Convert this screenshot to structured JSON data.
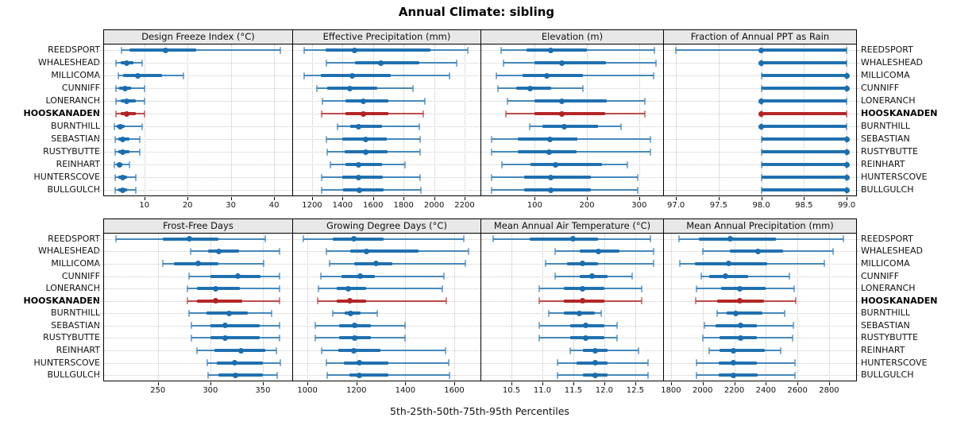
{
  "chart_data": {
    "type": "dotplot-percentiles",
    "title": "Annual Climate: sibling",
    "caption": "5th-25th-50th-75th-95th Percentiles",
    "percentiles": [
      5,
      25,
      50,
      75,
      95
    ],
    "sites": [
      "REEDSPORT",
      "WHALESHEAD",
      "MILLICOMA",
      "CUNNIFF",
      "LONERANCH",
      "HOOSKANADEN",
      "BURNTHILL",
      "SEBASTIAN",
      "RUSTYBUTTE",
      "REINHART",
      "HUNTERSCOVE",
      "BULLGULCH"
    ],
    "highlight_site": "HOOSKANADEN",
    "colors": {
      "series": "#1b6eae",
      "highlight": "#b22222",
      "panel_header_bg": "#e8e8e8",
      "grid": "#c4c4c4"
    },
    "legend_position": "none",
    "grid": "dotted",
    "panels": [
      {
        "title": "Design Freeze Index (°C)",
        "domain": [
          0.5,
          44.2
        ],
        "ticks": [
          10,
          20,
          30,
          40
        ],
        "tick_labels": [
          "10",
          "20",
          "30",
          "40"
        ],
        "values": [
          [
            4.7,
            6.6,
            15,
            22,
            41.5
          ],
          [
            3.5,
            4.5,
            6,
            7.5,
            9.5
          ],
          [
            4,
            5,
            8.5,
            14,
            19
          ],
          [
            3.5,
            4.2,
            5.5,
            7,
            10
          ],
          [
            3.5,
            4.5,
            6,
            8,
            10
          ],
          [
            3.5,
            4.5,
            6,
            8,
            10
          ],
          [
            3,
            3.6,
            4.5,
            5.5,
            9.5
          ],
          [
            3.2,
            4,
            5,
            6.5,
            9
          ],
          [
            3.2,
            4,
            5,
            6.5,
            9
          ],
          [
            3,
            3.6,
            4.3,
            5,
            6.5
          ],
          [
            3.2,
            4,
            5,
            6,
            8
          ],
          [
            3.2,
            4,
            5,
            6,
            8
          ]
        ]
      },
      {
        "title": "Effective Precipitation (mm)",
        "domain": [
          1070,
          2304
        ],
        "ticks": [
          1200,
          1400,
          1600,
          1800,
          2000,
          2200
        ],
        "tick_labels": [
          "1200",
          "1400",
          "1600",
          "1800",
          "2000",
          "2200"
        ],
        "values": [
          [
            1150,
            1290,
            1480,
            1975,
            2220
          ],
          [
            1295,
            1480,
            1650,
            1905,
            2150
          ],
          [
            1150,
            1255,
            1465,
            1715,
            2100
          ],
          [
            1230,
            1300,
            1445,
            1625,
            1860
          ],
          [
            1270,
            1420,
            1535,
            1700,
            1940
          ],
          [
            1265,
            1420,
            1535,
            1700,
            1930
          ],
          [
            1365,
            1450,
            1505,
            1660,
            1905
          ],
          [
            1295,
            1400,
            1550,
            1690,
            1910
          ],
          [
            1300,
            1415,
            1550,
            1695,
            1910
          ],
          [
            1320,
            1420,
            1505,
            1660,
            1810
          ],
          [
            1262,
            1400,
            1505,
            1665,
            1910
          ],
          [
            1265,
            1405,
            1510,
            1670,
            1915
          ]
        ]
      },
      {
        "title": "Elevation (m)",
        "domain": [
          -4,
          346
        ],
        "ticks": [
          100,
          200,
          300
        ],
        "tick_labels": [
          "100",
          "200",
          "300"
        ],
        "values": [
          [
            35,
            85,
            130,
            200,
            330
          ],
          [
            40,
            100,
            152,
            237,
            333
          ],
          [
            27,
            77,
            123,
            192,
            328
          ],
          [
            30,
            65,
            91,
            131,
            193
          ],
          [
            47,
            100,
            152,
            238,
            311
          ],
          [
            45,
            100,
            152,
            235,
            311
          ],
          [
            90,
            114,
            157,
            221,
            266
          ],
          [
            18,
            68,
            129,
            182,
            321
          ],
          [
            18,
            68,
            128,
            180,
            321
          ],
          [
            37,
            92,
            140,
            229,
            277
          ],
          [
            18,
            80,
            131,
            207,
            297
          ],
          [
            18,
            80,
            130,
            207,
            297
          ]
        ]
      },
      {
        "title": "Fraction of Annual PPT as Rain",
        "domain": [
          96.85,
          99.11
        ],
        "ticks": [
          97.0,
          97.5,
          98.0,
          98.5,
          99.0
        ],
        "tick_labels": [
          "97.0",
          "97.5",
          "98.0",
          "98.5",
          "99.0"
        ],
        "values": [
          [
            97,
            98,
            98,
            99,
            99
          ],
          [
            98,
            98,
            98,
            99,
            99
          ],
          [
            98,
            98,
            99,
            99,
            99
          ],
          [
            98,
            98,
            99,
            99,
            99
          ],
          [
            98,
            98,
            98,
            99,
            99
          ],
          [
            98,
            98,
            98,
            99,
            99
          ],
          [
            98,
            98,
            98,
            99,
            99
          ],
          [
            98,
            98,
            99,
            99,
            99
          ],
          [
            98,
            98,
            99,
            99,
            99
          ],
          [
            98,
            98,
            99,
            99,
            99
          ],
          [
            98,
            98,
            99,
            99,
            99
          ],
          [
            98,
            98,
            99,
            99,
            99
          ]
        ]
      },
      {
        "title": "Frost-Free Days",
        "domain": [
          198,
          378
        ],
        "ticks": [
          250,
          300,
          350
        ],
        "tick_labels": [
          "250",
          "300",
          "350"
        ],
        "values": [
          [
            210,
            255,
            280,
            308,
            352
          ],
          [
            281,
            298,
            308,
            327,
            366
          ],
          [
            255,
            265,
            288,
            308,
            351
          ],
          [
            280,
            300,
            326,
            348,
            366
          ],
          [
            278,
            287,
            305,
            328,
            366
          ],
          [
            278,
            287,
            305,
            330,
            366
          ],
          [
            280,
            296,
            318,
            336,
            358
          ],
          [
            282,
            300,
            314,
            347,
            366
          ],
          [
            282,
            300,
            314,
            347,
            366
          ],
          [
            287,
            304,
            329,
            352,
            363
          ],
          [
            297,
            306,
            323,
            350,
            367
          ],
          [
            298,
            308,
            324,
            350,
            364
          ]
        ]
      },
      {
        "title": "Growing Degree Days (°C)",
        "domain": [
          938,
          1707
        ],
        "ticks": [
          1000,
          1200,
          1400,
          1600
        ],
        "tick_labels": [
          "1000",
          "1200",
          "1400",
          "1600"
        ],
        "values": [
          [
            985,
            1105,
            1190,
            1310,
            1640
          ],
          [
            1078,
            1175,
            1243,
            1455,
            1658
          ],
          [
            1091,
            1191,
            1279,
            1347,
            1645
          ],
          [
            1055,
            1140,
            1214,
            1275,
            1558
          ],
          [
            1045,
            1120,
            1168,
            1240,
            1551
          ],
          [
            1042,
            1120,
            1172,
            1240,
            1568
          ],
          [
            1103,
            1152,
            1175,
            1217,
            1285
          ],
          [
            1032,
            1130,
            1194,
            1260,
            1400
          ],
          [
            1032,
            1130,
            1194,
            1260,
            1400
          ],
          [
            1058,
            1126,
            1191,
            1298,
            1565
          ],
          [
            1078,
            1150,
            1211,
            1330,
            1578
          ],
          [
            1081,
            1170,
            1213,
            1330,
            1581
          ]
        ]
      },
      {
        "title": "Mean Annual Air Temperature (°C)",
        "domain": [
          10.0,
          12.95
        ],
        "ticks": [
          10.5,
          11.0,
          11.5,
          12.0,
          12.5
        ],
        "tick_labels": [
          "10.5",
          "11.0",
          "11.5",
          "12.0",
          "12.5"
        ],
        "values": [
          [
            10.2,
            10.8,
            11.5,
            11.9,
            12.75
          ],
          [
            11.2,
            11.6,
            11.9,
            12.25,
            12.8
          ],
          [
            11.05,
            11.4,
            11.65,
            11.9,
            12.8
          ],
          [
            11.2,
            11.6,
            11.8,
            12.05,
            12.45
          ],
          [
            10.95,
            11.35,
            11.65,
            12.0,
            12.6
          ],
          [
            10.95,
            11.35,
            11.65,
            12.0,
            12.6
          ],
          [
            11.1,
            11.35,
            11.6,
            11.85,
            11.95
          ],
          [
            10.95,
            11.45,
            11.7,
            12.0,
            12.2
          ],
          [
            10.95,
            11.45,
            11.7,
            12.0,
            12.2
          ],
          [
            11.45,
            11.65,
            11.85,
            12.05,
            12.55
          ],
          [
            11.25,
            11.55,
            11.85,
            12.05,
            12.7
          ],
          [
            11.25,
            11.65,
            11.85,
            12.05,
            12.7
          ]
        ]
      },
      {
        "title": "Mean Annual Precipitation (mm)",
        "domain": [
          1750,
          2971
        ],
        "ticks": [
          1800,
          2000,
          2200,
          2400,
          2600,
          2800
        ],
        "tick_labels": [
          "1800",
          "2000",
          "2200",
          "2400",
          "2600",
          "2800"
        ],
        "values": [
          [
            1850,
            1975,
            2175,
            2465,
            2890
          ],
          [
            2000,
            2170,
            2350,
            2510,
            2825
          ],
          [
            1855,
            1950,
            2165,
            2410,
            2770
          ],
          [
            1990,
            2040,
            2145,
            2290,
            2550
          ],
          [
            1960,
            2115,
            2235,
            2400,
            2580
          ],
          [
            1955,
            2090,
            2235,
            2390,
            2590
          ],
          [
            2090,
            2150,
            2210,
            2380,
            2520
          ],
          [
            2010,
            2080,
            2240,
            2345,
            2575
          ],
          [
            2000,
            2105,
            2240,
            2345,
            2570
          ],
          [
            2040,
            2105,
            2195,
            2395,
            2495
          ],
          [
            1960,
            2100,
            2195,
            2345,
            2585
          ],
          [
            1960,
            2100,
            2195,
            2350,
            2585
          ]
        ]
      }
    ]
  }
}
